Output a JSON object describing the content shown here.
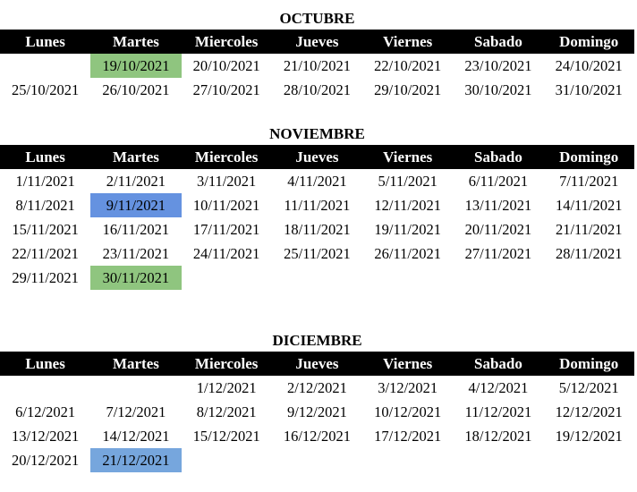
{
  "weekdays": [
    "Lunes",
    "Martes",
    "Miercoles",
    "Jueves",
    "Viernes",
    "Sabado",
    "Domingo"
  ],
  "colors": {
    "green": "#8fc57f",
    "blue": "#6592e0",
    "light_blue": "#76a6dd",
    "header_bg": "#000000"
  },
  "months": [
    {
      "title": "OCTUBRE",
      "rows": [
        [
          "",
          "19/10/2021",
          "20/10/2021",
          "21/10/2021",
          "22/10/2021",
          "23/10/2021",
          "24/10/2021"
        ],
        [
          "25/10/2021",
          "26/10/2021",
          "27/10/2021",
          "28/10/2021",
          "29/10/2021",
          "30/10/2021",
          "31/10/2021"
        ]
      ],
      "highlights": [
        {
          "date": "19/10/2021",
          "color": "green"
        }
      ]
    },
    {
      "title": "NOVIEMBRE",
      "rows": [
        [
          "1/11/2021",
          "2/11/2021",
          "3/11/2021",
          "4/11/2021",
          "5/11/2021",
          "6/11/2021",
          "7/11/2021"
        ],
        [
          "8/11/2021",
          "9/11/2021",
          "10/11/2021",
          "11/11/2021",
          "12/11/2021",
          "13/11/2021",
          "14/11/2021"
        ],
        [
          "15/11/2021",
          "16/11/2021",
          "17/11/2021",
          "18/11/2021",
          "19/11/2021",
          "20/11/2021",
          "21/11/2021"
        ],
        [
          "22/11/2021",
          "23/11/2021",
          "24/11/2021",
          "25/11/2021",
          "26/11/2021",
          "27/11/2021",
          "28/11/2021"
        ],
        [
          "29/11/2021",
          "30/11/2021",
          "",
          "",
          "",
          "",
          ""
        ]
      ],
      "highlights": [
        {
          "date": "9/11/2021",
          "color": "blue"
        },
        {
          "date": "30/11/2021",
          "color": "green"
        }
      ]
    },
    {
      "title": "DICIEMBRE",
      "rows": [
        [
          "",
          "",
          "1/12/2021",
          "2/12/2021",
          "3/12/2021",
          "4/12/2021",
          "5/12/2021"
        ],
        [
          "6/12/2021",
          "7/12/2021",
          "8/12/2021",
          "9/12/2021",
          "10/12/2021",
          "11/12/2021",
          "12/12/2021"
        ],
        [
          "13/12/2021",
          "14/12/2021",
          "15/12/2021",
          "16/12/2021",
          "17/12/2021",
          "18/12/2021",
          "19/12/2021"
        ],
        [
          "20/12/2021",
          "21/12/2021",
          "",
          "",
          "",
          "",
          ""
        ]
      ],
      "highlights": [
        {
          "date": "21/12/2021",
          "color": "light_blue"
        }
      ]
    }
  ]
}
